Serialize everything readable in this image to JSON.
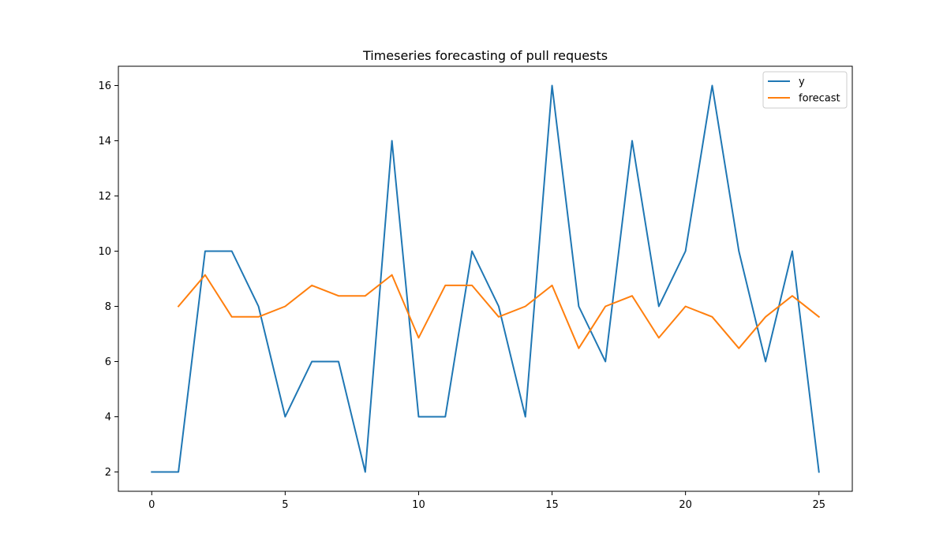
{
  "chart_data": {
    "type": "line",
    "title": "Timeseries forecasting of pull requests",
    "xlabel": "",
    "ylabel": "",
    "xlim": [
      -1.25,
      26.25
    ],
    "ylim": [
      1.3,
      16.7
    ],
    "xticks": [
      0,
      5,
      10,
      15,
      20,
      25
    ],
    "yticks": [
      2,
      4,
      6,
      8,
      10,
      12,
      14,
      16
    ],
    "grid": false,
    "legend_position": "top-right",
    "series": [
      {
        "name": "y",
        "color": "#1f77b4",
        "x": [
          0,
          1,
          2,
          3,
          4,
          5,
          6,
          7,
          8,
          9,
          10,
          11,
          12,
          13,
          14,
          15,
          16,
          17,
          18,
          19,
          20,
          21,
          22,
          23,
          24,
          25
        ],
        "values": [
          2,
          2,
          10,
          10,
          8,
          4,
          6,
          6,
          2,
          14,
          4,
          4,
          10,
          8,
          4,
          16,
          8,
          6,
          14,
          8,
          10,
          16,
          10,
          6,
          10,
          2
        ]
      },
      {
        "name": "forecast",
        "color": "#ff7f0e",
        "x": [
          1,
          2,
          3,
          4,
          5,
          6,
          7,
          8,
          9,
          10,
          11,
          12,
          13,
          14,
          15,
          16,
          17,
          18,
          19,
          20,
          21,
          22,
          23,
          24,
          25
        ],
        "values": [
          8.0,
          9.14,
          7.62,
          7.62,
          8.0,
          8.76,
          8.38,
          8.38,
          9.14,
          6.86,
          8.76,
          8.76,
          7.62,
          8.0,
          8.76,
          6.48,
          8.0,
          8.38,
          6.86,
          8.0,
          7.62,
          6.48,
          7.62,
          8.38,
          7.62
        ]
      }
    ]
  }
}
